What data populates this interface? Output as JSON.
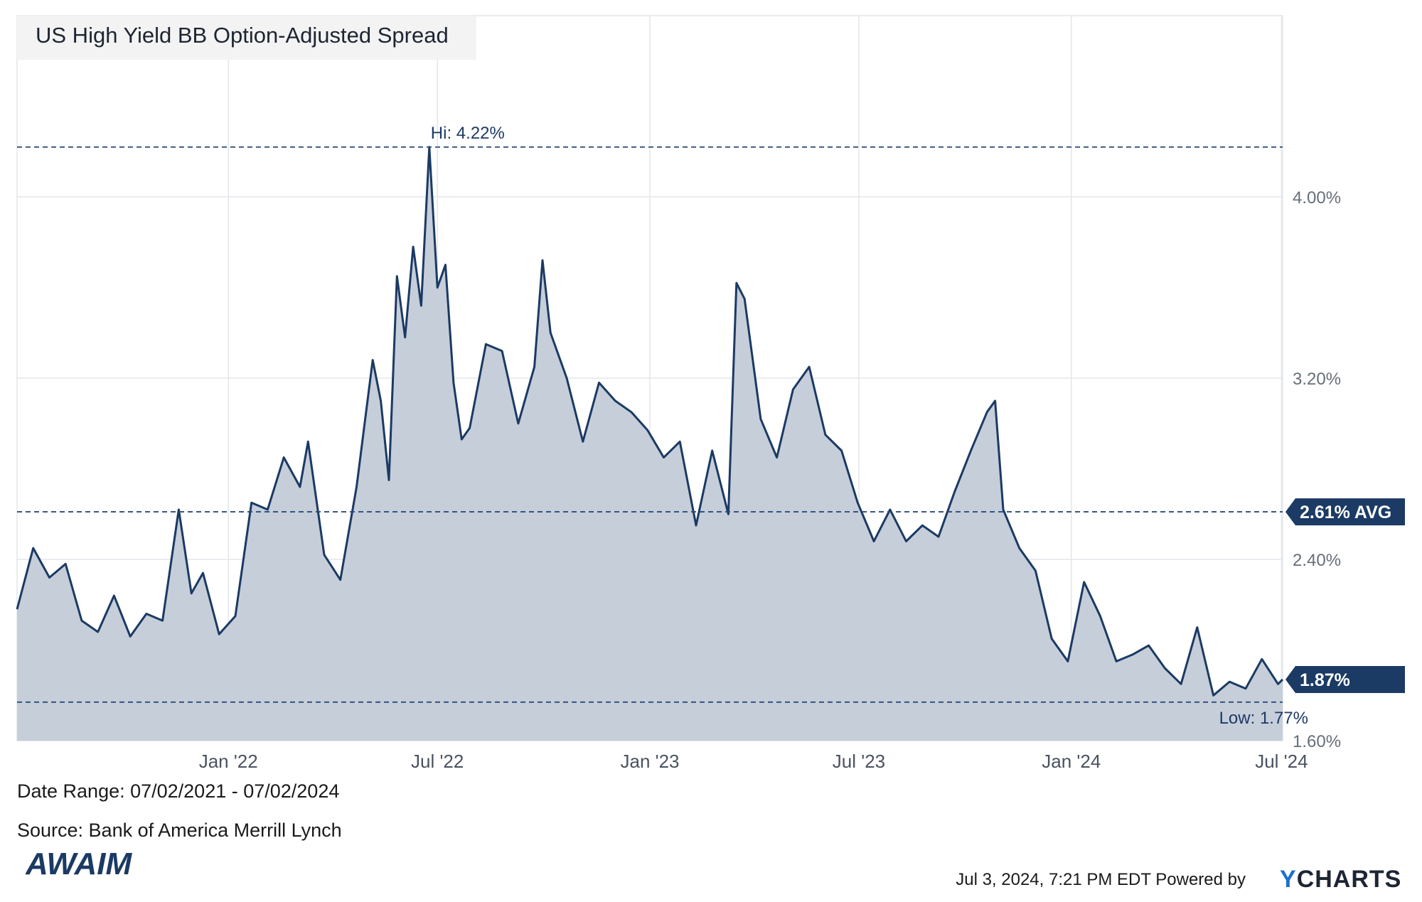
{
  "chart_data": {
    "type": "area",
    "title": "US High Yield BB Option-Adjusted Spread",
    "date_range_label": "Date Range: 07/02/2021 - 07/02/2024",
    "source_label": "Source: Bank of America Merrill Lynch",
    "ylim": [
      1.6,
      4.8
    ],
    "yticks": [
      {
        "value": 1.6,
        "label": "1.60%"
      },
      {
        "value": 2.4,
        "label": "2.40%"
      },
      {
        "value": 3.2,
        "label": "3.20%"
      },
      {
        "value": 4.0,
        "label": "4.00%"
      }
    ],
    "xticks": [
      {
        "date": "2022-01-01",
        "label": "Jan '22"
      },
      {
        "date": "2022-07-01",
        "label": "Jul '22"
      },
      {
        "date": "2023-01-01",
        "label": "Jan '23"
      },
      {
        "date": "2023-07-01",
        "label": "Jul '23"
      },
      {
        "date": "2024-01-01",
        "label": "Jan '24"
      },
      {
        "date": "2024-07-01",
        "label": "Jul '24"
      }
    ],
    "grid": true,
    "hi": {
      "value": 4.22,
      "label": "Hi: 4.22%"
    },
    "low": {
      "value": 1.77,
      "label": "Low: 1.77%"
    },
    "avg": {
      "value": 2.61,
      "label": "2.61% AVG"
    },
    "last": {
      "value": 1.87,
      "label": "1.87%"
    },
    "series": [
      {
        "x": [
          "2021-07-02",
          "2021-07-16",
          "2021-07-30",
          "2021-08-13",
          "2021-08-27",
          "2021-09-10",
          "2021-09-24",
          "2021-10-08",
          "2021-10-22",
          "2021-11-05",
          "2021-11-19",
          "2021-11-30",
          "2021-12-10",
          "2021-12-24",
          "2022-01-07",
          "2022-01-21",
          "2022-02-04",
          "2022-02-18",
          "2022-03-04",
          "2022-03-11",
          "2022-03-25",
          "2022-04-08",
          "2022-04-22",
          "2022-05-06",
          "2022-05-13",
          "2022-05-20",
          "2022-05-27",
          "2022-06-03",
          "2022-06-10",
          "2022-06-17",
          "2022-06-24",
          "2022-07-01",
          "2022-07-08",
          "2022-07-15",
          "2022-07-22",
          "2022-07-29",
          "2022-08-12",
          "2022-08-26",
          "2022-09-09",
          "2022-09-23",
          "2022-09-30",
          "2022-10-07",
          "2022-10-21",
          "2022-11-04",
          "2022-11-18",
          "2022-12-02",
          "2022-12-16",
          "2022-12-30",
          "2023-01-13",
          "2023-01-27",
          "2023-02-10",
          "2023-02-24",
          "2023-03-10",
          "2023-03-17",
          "2023-03-24",
          "2023-04-07",
          "2023-04-21",
          "2023-05-05",
          "2023-05-19",
          "2023-06-02",
          "2023-06-16",
          "2023-06-30",
          "2023-07-14",
          "2023-07-28",
          "2023-08-11",
          "2023-08-25",
          "2023-09-08",
          "2023-09-22",
          "2023-10-06",
          "2023-10-20",
          "2023-10-27",
          "2023-11-03",
          "2023-11-17",
          "2023-12-01",
          "2023-12-15",
          "2023-12-29",
          "2024-01-12",
          "2024-01-26",
          "2024-02-09",
          "2024-02-23",
          "2024-03-08",
          "2024-03-22",
          "2024-04-05",
          "2024-04-19",
          "2024-05-03",
          "2024-05-17",
          "2024-05-31",
          "2024-06-14",
          "2024-06-28",
          "2024-07-02"
        ],
        "values": [
          2.18,
          2.45,
          2.32,
          2.38,
          2.13,
          2.08,
          2.24,
          2.06,
          2.16,
          2.13,
          2.62,
          2.25,
          2.34,
          2.07,
          2.15,
          2.65,
          2.62,
          2.85,
          2.72,
          2.92,
          2.42,
          2.31,
          2.72,
          3.28,
          3.1,
          2.75,
          3.65,
          3.38,
          3.78,
          3.52,
          4.22,
          3.6,
          3.7,
          3.18,
          2.93,
          2.98,
          3.35,
          3.32,
          3.0,
          3.25,
          3.72,
          3.4,
          3.2,
          2.92,
          3.18,
          3.1,
          3.05,
          2.97,
          2.85,
          2.92,
          2.55,
          2.88,
          2.6,
          3.62,
          3.55,
          3.02,
          2.85,
          3.15,
          3.25,
          2.95,
          2.88,
          2.65,
          2.48,
          2.62,
          2.48,
          2.55,
          2.5,
          2.7,
          2.88,
          3.05,
          3.1,
          2.62,
          2.45,
          2.35,
          2.05,
          1.95,
          2.3,
          2.15,
          1.95,
          1.98,
          2.02,
          1.92,
          1.85,
          2.1,
          1.8,
          1.86,
          1.83,
          1.96,
          1.85,
          1.87
        ]
      }
    ]
  },
  "footer": {
    "timestamp": "Jul 3, 2024, 7:21 PM EDT Powered by",
    "brand_y": "Y",
    "brand_rest": "CHARTS",
    "logo_text": "AWAIM"
  },
  "colors": {
    "line": "#1b3a64",
    "fill": "#c6ceda",
    "grid": "#e3e6ea",
    "ref_line": "#2a4b78",
    "badge": "#1b3a64",
    "title_bg": "#f3f3f3"
  }
}
